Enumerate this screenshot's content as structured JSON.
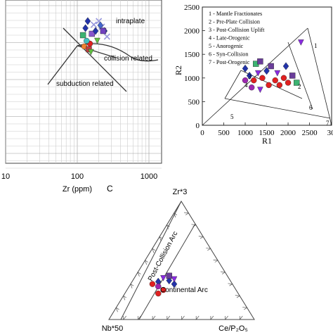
{
  "chart_data": [
    {
      "type": "scatter",
      "panel": "A",
      "xlabel": "Zr (ppm)",
      "ylabel": "",
      "xscale": "log",
      "xlim": [
        10,
        1000
      ],
      "ticks_x": [
        "10",
        "100",
        "1000"
      ],
      "grid": true,
      "annotations": [
        "intraplate",
        "collision related",
        "subduction related"
      ],
      "points": [
        {
          "x": 130,
          "marker": "diamond",
          "color": "#2233aa"
        },
        {
          "x": 140,
          "marker": "diamond",
          "color": "#2233aa"
        },
        {
          "x": 150,
          "marker": "circle",
          "color": "#e02020"
        },
        {
          "x": 160,
          "marker": "square",
          "color": "#8855cc"
        },
        {
          "x": 170,
          "marker": "cross",
          "color": "#9999dd"
        },
        {
          "x": 180,
          "marker": "diamond",
          "color": "#2233aa"
        },
        {
          "x": 200,
          "marker": "cross",
          "color": "#9999dd"
        },
        {
          "x": 220,
          "marker": "cross",
          "color": "#9999dd"
        },
        {
          "x": 240,
          "marker": "diamond",
          "color": "#2233aa"
        },
        {
          "x": 260,
          "marker": "cross",
          "color": "#9999dd"
        },
        {
          "x": 120,
          "marker": "square",
          "color": "#3cb371"
        },
        {
          "x": 125,
          "marker": "circle",
          "color": "#f08030"
        },
        {
          "x": 145,
          "marker": "square",
          "color": "#c04040"
        },
        {
          "x": 155,
          "marker": "triangle",
          "color": "#60c040"
        },
        {
          "x": 135,
          "marker": "circle",
          "color": "#40c0c0"
        },
        {
          "x": 190,
          "marker": "triangle",
          "color": "#60c040"
        },
        {
          "x": 210,
          "marker": "diamond",
          "color": "#4466cc"
        },
        {
          "x": 230,
          "marker": "square",
          "color": "#7040c0"
        }
      ]
    },
    {
      "type": "scatter",
      "panel": "B",
      "xlabel": "R1",
      "ylabel": "R2",
      "xlim": [
        0,
        3000
      ],
      "ylim": [
        0,
        2500
      ],
      "ticks_x": [
        "0",
        "500",
        "1000",
        "1500",
        "2000",
        "2500",
        "30"
      ],
      "ticks_y": [
        "0",
        "500",
        "1000",
        "1500",
        "2000",
        "2500"
      ],
      "legend": [
        "1 - Mantle Fractionates",
        "2 - Pre-Plate Collision",
        "3 - Post-Collision Uplift",
        "4 - Late-Orogenic",
        "5 - Anorogenic",
        "6 - Syn-Collision",
        "7 - Post-Orogenic"
      ],
      "field_labels": [
        "1",
        "2",
        "3",
        "4",
        "5",
        "6",
        "7"
      ],
      "points": [
        {
          "x": 1000,
          "y": 1200,
          "marker": "diamond",
          "color": "#2233aa"
        },
        {
          "x": 1100,
          "y": 1050,
          "marker": "diamond",
          "color": "#2233aa"
        },
        {
          "x": 1200,
          "y": 950,
          "marker": "circle",
          "color": "#e02020"
        },
        {
          "x": 1250,
          "y": 1300,
          "marker": "square",
          "color": "#3cb371"
        },
        {
          "x": 1300,
          "y": 1100,
          "marker": "triangle",
          "color": "#8a2be2"
        },
        {
          "x": 1400,
          "y": 1000,
          "marker": "circle",
          "color": "#e02020"
        },
        {
          "x": 1500,
          "y": 1150,
          "marker": "diamond",
          "color": "#2233aa"
        },
        {
          "x": 1550,
          "y": 850,
          "marker": "circle",
          "color": "#e02020"
        },
        {
          "x": 1600,
          "y": 1250,
          "marker": "square",
          "color": "#6a3d9a"
        },
        {
          "x": 1700,
          "y": 950,
          "marker": "circle",
          "color": "#e02020"
        },
        {
          "x": 1750,
          "y": 1100,
          "marker": "triangle",
          "color": "#8a2be2"
        },
        {
          "x": 1800,
          "y": 850,
          "marker": "circle",
          "color": "#e02020"
        },
        {
          "x": 1900,
          "y": 1000,
          "marker": "circle",
          "color": "#e02020"
        },
        {
          "x": 2000,
          "y": 900,
          "marker": "circle",
          "color": "#e02020"
        },
        {
          "x": 2100,
          "y": 1050,
          "marker": "square",
          "color": "#6a3d9a"
        },
        {
          "x": 2200,
          "y": 900,
          "marker": "square",
          "color": "#3cb371"
        },
        {
          "x": 1350,
          "y": 1350,
          "marker": "square",
          "color": "#6a3d9a"
        },
        {
          "x": 1000,
          "y": 950,
          "marker": "circle",
          "color": "#9c27b0"
        },
        {
          "x": 1150,
          "y": 800,
          "marker": "circle",
          "color": "#9c27b0"
        },
        {
          "x": 1350,
          "y": 750,
          "marker": "triangle",
          "color": "#8a2be2"
        },
        {
          "x": 2300,
          "y": 1750,
          "marker": "triangle",
          "color": "#8a2be2"
        },
        {
          "x": 1950,
          "y": 1250,
          "marker": "diamond",
          "color": "#2233aa"
        }
      ]
    },
    {
      "type": "ternary",
      "panel": "C",
      "apices": [
        "Zr*3",
        "Nb*50",
        "Ce/P₂O₅"
      ],
      "field_labels": [
        "Post-Collision Arc",
        "Continental Arc"
      ],
      "points": [
        {
          "a": 0.3,
          "b": 0.55,
          "c": 0.15,
          "marker": "circle",
          "color": "#e02020"
        },
        {
          "a": 0.32,
          "b": 0.5,
          "c": 0.18,
          "marker": "diamond",
          "color": "#2233aa"
        },
        {
          "a": 0.35,
          "b": 0.45,
          "c": 0.2,
          "marker": "triangle",
          "color": "#8a2be2"
        },
        {
          "a": 0.28,
          "b": 0.52,
          "c": 0.2,
          "marker": "circle",
          "color": "#9c27b0"
        },
        {
          "a": 0.33,
          "b": 0.42,
          "c": 0.25,
          "marker": "diamond",
          "color": "#2233aa"
        },
        {
          "a": 0.25,
          "b": 0.5,
          "c": 0.25,
          "marker": "circle",
          "color": "#e02020"
        },
        {
          "a": 0.37,
          "b": 0.4,
          "c": 0.23,
          "marker": "square",
          "color": "#6a3d9a"
        },
        {
          "a": 0.3,
          "b": 0.4,
          "c": 0.3,
          "marker": "diamond",
          "color": "#2233aa"
        },
        {
          "a": 0.22,
          "b": 0.55,
          "c": 0.23,
          "marker": "circle",
          "color": "#e02020"
        },
        {
          "a": 0.34,
          "b": 0.38,
          "c": 0.28,
          "marker": "triangle",
          "color": "#8a2be2"
        }
      ]
    }
  ],
  "panel_c_letter": "C"
}
